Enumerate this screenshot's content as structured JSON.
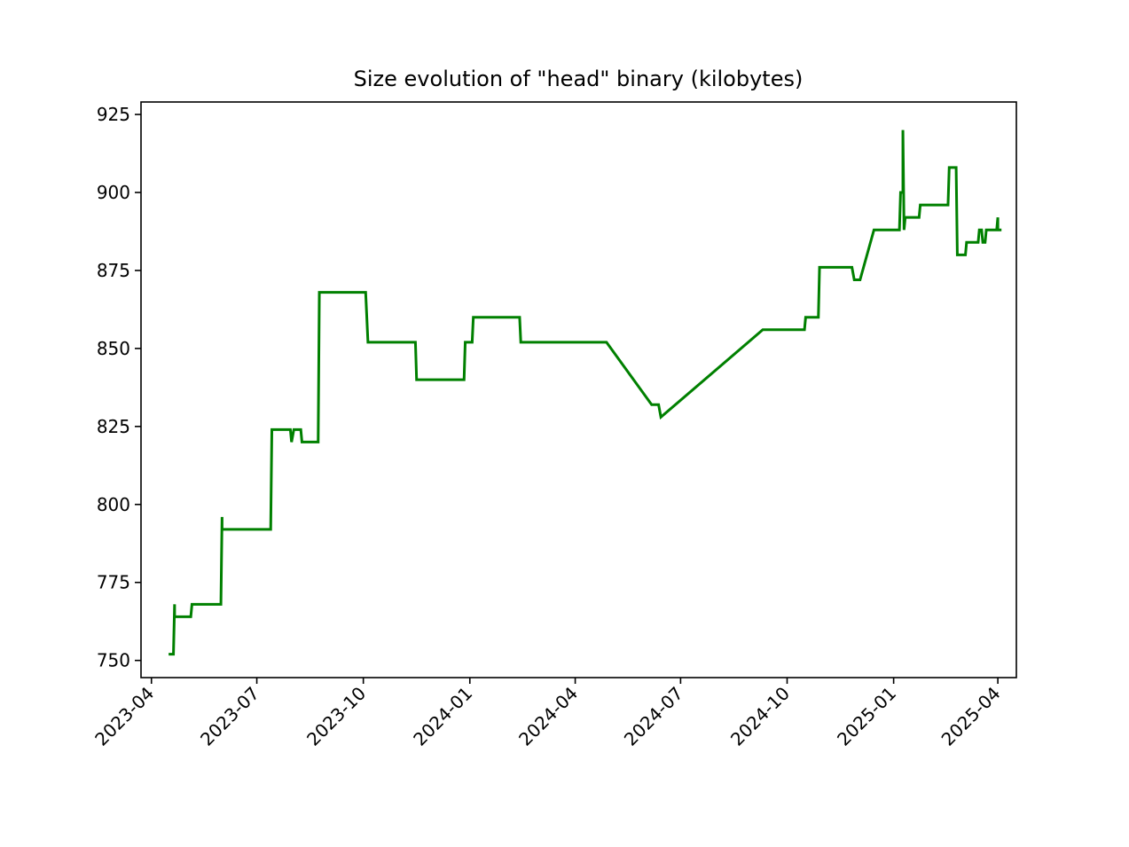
{
  "chart_data": {
    "type": "line",
    "title": "Size evolution of \"head\" binary (kilobytes)",
    "xlabel": "",
    "ylabel": "",
    "x_axis_type": "date",
    "xlim": [
      "2023-03-23",
      "2025-04-17"
    ],
    "ylim": [
      744.5,
      929
    ],
    "grid": false,
    "legend": "none",
    "x_ticks": [
      "2023-04",
      "2023-07",
      "2023-10",
      "2024-01",
      "2024-04",
      "2024-07",
      "2024-10",
      "2025-01",
      "2025-04"
    ],
    "y_ticks": [
      750,
      775,
      800,
      825,
      850,
      875,
      900,
      925
    ],
    "series": [
      {
        "color": "#008000",
        "points": [
          [
            "2023-04-17",
            752
          ],
          [
            "2023-04-20",
            752
          ],
          [
            "2023-04-21",
            768
          ],
          [
            "2023-04-21",
            764
          ],
          [
            "2023-05-05",
            764
          ],
          [
            "2023-05-06",
            768
          ],
          [
            "2023-05-31",
            768
          ],
          [
            "2023-06-01",
            796
          ],
          [
            "2023-06-01",
            792
          ],
          [
            "2023-07-13",
            792
          ],
          [
            "2023-07-14",
            824
          ],
          [
            "2023-07-30",
            824
          ],
          [
            "2023-07-31",
            820
          ],
          [
            "2023-08-02",
            824
          ],
          [
            "2023-08-08",
            824
          ],
          [
            "2023-08-09",
            820
          ],
          [
            "2023-08-23",
            820
          ],
          [
            "2023-08-24",
            868
          ],
          [
            "2023-10-03",
            868
          ],
          [
            "2023-10-05",
            852
          ],
          [
            "2023-11-15",
            852
          ],
          [
            "2023-11-16",
            840
          ],
          [
            "2023-12-27",
            840
          ],
          [
            "2023-12-28",
            852
          ],
          [
            "2024-01-03",
            852
          ],
          [
            "2024-01-04",
            860
          ],
          [
            "2024-02-13",
            860
          ],
          [
            "2024-02-14",
            852
          ],
          [
            "2024-04-28",
            852
          ],
          [
            "2024-06-06",
            832
          ],
          [
            "2024-06-12",
            832
          ],
          [
            "2024-06-14",
            828
          ],
          [
            "2024-09-10",
            856
          ],
          [
            "2024-10-16",
            856
          ],
          [
            "2024-10-17",
            860
          ],
          [
            "2024-10-28",
            860
          ],
          [
            "2024-10-29",
            876
          ],
          [
            "2024-11-26",
            876
          ],
          [
            "2024-11-28",
            872
          ],
          [
            "2024-12-03",
            872
          ],
          [
            "2024-12-15",
            888
          ],
          [
            "2025-01-06",
            888
          ],
          [
            "2025-01-07",
            900
          ],
          [
            "2025-01-09",
            900
          ],
          [
            "2025-01-09",
            920
          ],
          [
            "2025-01-10",
            888
          ],
          [
            "2025-01-11",
            892
          ],
          [
            "2025-01-23",
            892
          ],
          [
            "2025-01-24",
            896
          ],
          [
            "2025-02-17",
            896
          ],
          [
            "2025-02-18",
            908
          ],
          [
            "2025-02-24",
            908
          ],
          [
            "2025-02-25",
            880
          ],
          [
            "2025-03-04",
            880
          ],
          [
            "2025-03-05",
            884
          ],
          [
            "2025-03-15",
            884
          ],
          [
            "2025-03-16",
            888
          ],
          [
            "2025-03-18",
            888
          ],
          [
            "2025-03-19",
            884
          ],
          [
            "2025-03-21",
            884
          ],
          [
            "2025-03-22",
            888
          ],
          [
            "2025-03-31",
            888
          ],
          [
            "2025-04-01",
            892
          ],
          [
            "2025-04-01",
            888
          ],
          [
            "2025-04-03",
            888
          ]
        ]
      }
    ]
  }
}
